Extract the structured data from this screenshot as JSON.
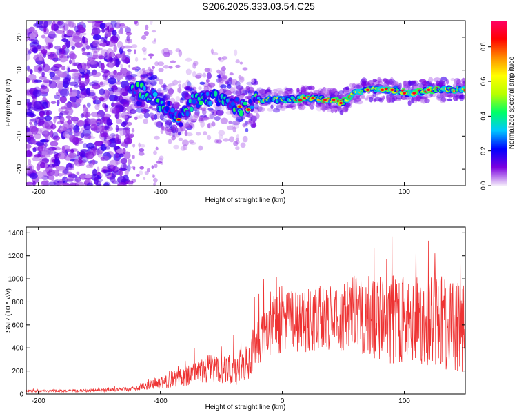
{
  "title": "S206.2025.333.03.54.C25",
  "chart_data": [
    {
      "type": "heatmap",
      "name": "spectrogram",
      "xlabel": "Height of straight line (km)",
      "ylabel": "Frequency (Hz)",
      "xlim": [
        -210,
        150
      ],
      "ylim": [
        -25,
        25
      ],
      "xticks": [
        -200,
        -100,
        0,
        100
      ],
      "yticks": [
        20,
        10,
        0,
        -10,
        -20
      ],
      "colorbar": {
        "label": "Normalized spectral amplitude",
        "range": [
          0,
          0.95
        ],
        "ticks": [
          0.0,
          0.2,
          0.4,
          0.6,
          0.8
        ],
        "colors": [
          "#f4ecfa",
          "#7b00e0",
          "#0000ff",
          "#00c8ff",
          "#00ff66",
          "#b8ff00",
          "#ffff00",
          "#ff8c00",
          "#ff0000",
          "#ff0066"
        ]
      },
      "ridge": {
        "description_points_km_hz": [
          [
            -120,
            4
          ],
          [
            -110,
            3
          ],
          [
            -100,
            0
          ],
          [
            -90,
            -3
          ],
          [
            -84,
            -5
          ],
          [
            -75,
            0
          ],
          [
            -65,
            2
          ],
          [
            -55,
            2
          ],
          [
            -45,
            1
          ],
          [
            -35,
            -1
          ],
          [
            -30,
            -2
          ],
          [
            -20,
            1
          ],
          [
            0,
            1
          ],
          [
            20,
            1.5
          ],
          [
            40,
            1
          ],
          [
            48,
            0
          ],
          [
            60,
            3
          ],
          [
            70,
            4
          ],
          [
            90,
            4
          ],
          [
            105,
            3
          ],
          [
            120,
            4
          ],
          [
            135,
            4
          ],
          [
            150,
            4
          ]
        ],
        "peak_amplitude": 0.95
      }
    },
    {
      "type": "line",
      "name": "snr",
      "xlabel": "Height of straight line (km)",
      "ylabel": "SNR (10 * v/v)",
      "xlim": [
        -210,
        150
      ],
      "ylim": [
        0,
        1450
      ],
      "xticks": [
        -200,
        -100,
        0,
        100
      ],
      "yticks": [
        0,
        200,
        400,
        600,
        800,
        1000,
        1200,
        1400
      ],
      "series": [
        {
          "name": "SNR",
          "color": "#ee3333",
          "envelope_x": [
            -210,
            -150,
            -120,
            -110,
            -100,
            -80,
            -60,
            -40,
            -30,
            -20,
            -10,
            0,
            20,
            40,
            60,
            80,
            100,
            120,
            140,
            150
          ],
          "envelope_mean": [
            25,
            30,
            45,
            80,
            100,
            150,
            220,
            210,
            260,
            460,
            560,
            620,
            640,
            680,
            700,
            650,
            640,
            620,
            580,
            560
          ],
          "envelope_spread": [
            10,
            12,
            20,
            40,
            60,
            80,
            120,
            140,
            170,
            200,
            240,
            260,
            280,
            300,
            330,
            380,
            400,
            420,
            400,
            380
          ]
        }
      ]
    }
  ]
}
